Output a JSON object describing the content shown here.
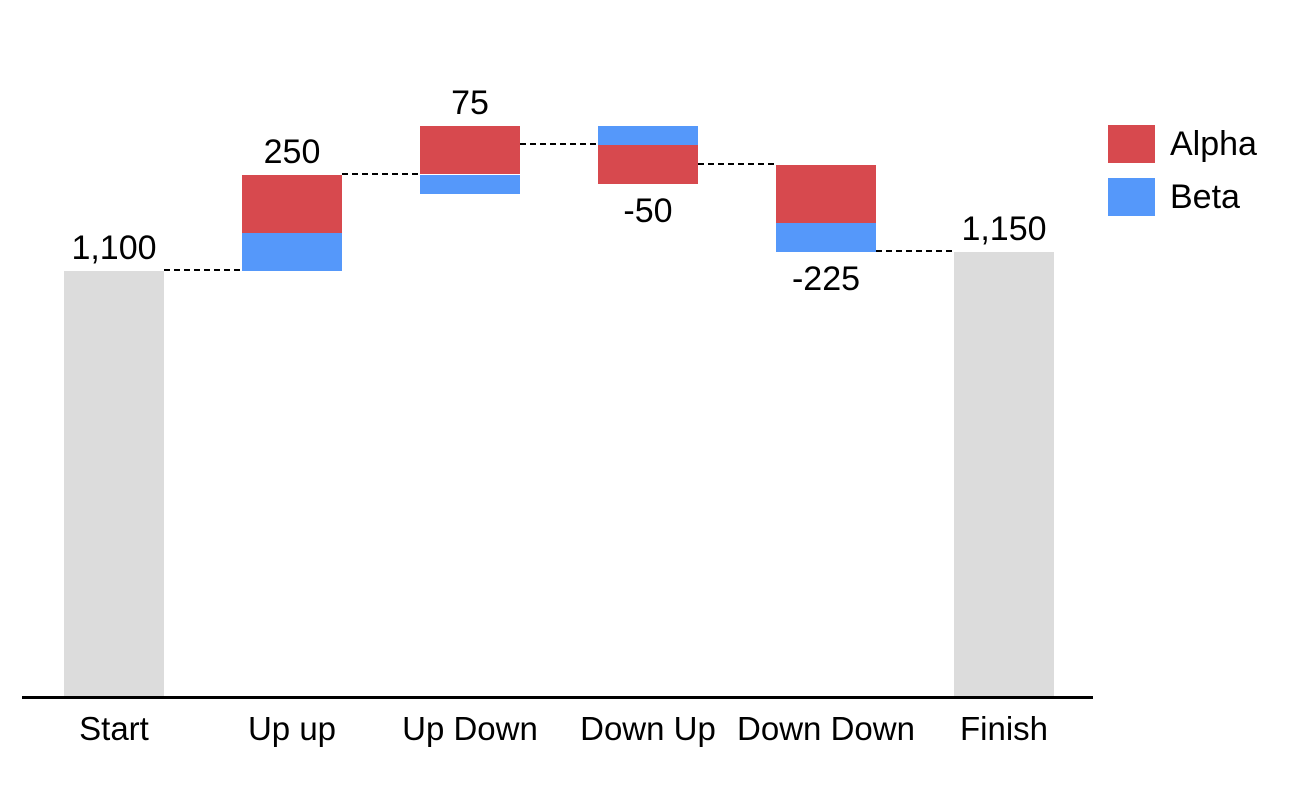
{
  "chart_data": {
    "type": "waterfall",
    "title": "",
    "categories": [
      "Start",
      "Up up",
      "Up Down",
      "Down Up",
      "Down Down",
      "Finish"
    ],
    "series": [
      {
        "name": "Alpha",
        "color": "#d7494e",
        "values": [
          null,
          150,
          125,
          -100,
          -150,
          null
        ]
      },
      {
        "name": "Beta",
        "color": "#5598fa",
        "values": [
          null,
          100,
          -50,
          50,
          -75,
          null
        ]
      }
    ],
    "totals": [
      1100,
      null,
      null,
      null,
      null,
      1150
    ],
    "total_color": "#dcdcdc",
    "net_changes": [
      1100,
      250,
      75,
      -50,
      -225,
      1150
    ],
    "value_labels": [
      "1,100",
      "250",
      "75",
      "-50",
      "-225",
      "1,150"
    ],
    "running_totals": [
      1100,
      1350,
      1425,
      1375,
      1150,
      1150
    ],
    "connector_levels": [
      1100,
      1350,
      1425,
      1375,
      1150
    ],
    "connector_style": "dashed",
    "ylim": [
      0,
      1800
    ],
    "grid": false,
    "y_axis_visible": false,
    "x_axis_line": true,
    "legend_position": "top-right",
    "text_color": "#000000",
    "background": "#ffffff"
  }
}
